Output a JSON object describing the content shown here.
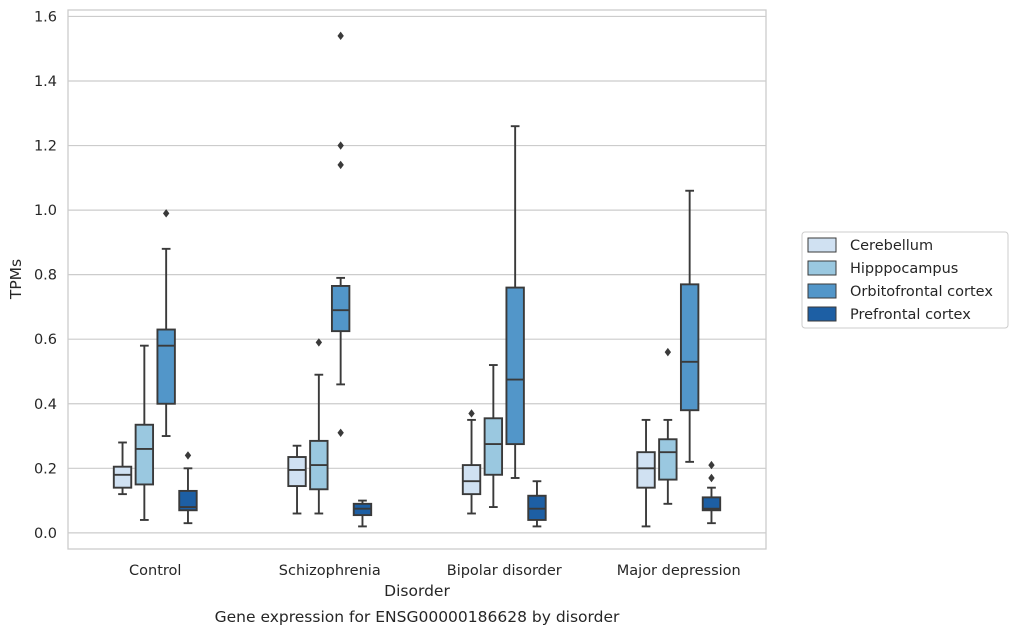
{
  "caption": "Gene expression for ENSG00000186628 by disorder",
  "chart_data": {
    "type": "box",
    "xlabel": "Disorder",
    "ylabel": "TPMs",
    "ylim": [
      -0.05,
      1.62
    ],
    "yticks": [
      "0.0",
      "0.2",
      "0.4",
      "0.6",
      "0.8",
      "1.0",
      "1.2",
      "1.4",
      "1.6"
    ],
    "grid": true,
    "legend_placement": "center-right outside",
    "categories": [
      "Control",
      "Schizophrenia",
      "Bipolar disorder",
      "Major depression"
    ],
    "series": [
      {
        "name": "Cerebellum",
        "color": "#d0e1f2",
        "boxes": [
          {
            "whislo": 0.12,
            "q1": 0.14,
            "med": 0.18,
            "q3": 0.205,
            "whishi": 0.28,
            "fliers": []
          },
          {
            "whislo": 0.06,
            "q1": 0.145,
            "med": 0.195,
            "q3": 0.235,
            "whishi": 0.27,
            "fliers": []
          },
          {
            "whislo": 0.06,
            "q1": 0.12,
            "med": 0.16,
            "q3": 0.21,
            "whishi": 0.35,
            "fliers": [
              0.37
            ]
          },
          {
            "whislo": 0.02,
            "q1": 0.14,
            "med": 0.2,
            "q3": 0.25,
            "whishi": 0.35,
            "fliers": []
          }
        ]
      },
      {
        "name": "Hipppocampus",
        "color": "#9ac8e0",
        "boxes": [
          {
            "whislo": 0.04,
            "q1": 0.15,
            "med": 0.26,
            "q3": 0.335,
            "whishi": 0.58,
            "fliers": []
          },
          {
            "whislo": 0.06,
            "q1": 0.135,
            "med": 0.21,
            "q3": 0.285,
            "whishi": 0.49,
            "fliers": [
              0.59
            ]
          },
          {
            "whislo": 0.08,
            "q1": 0.18,
            "med": 0.275,
            "q3": 0.355,
            "whishi": 0.52,
            "fliers": []
          },
          {
            "whislo": 0.09,
            "q1": 0.165,
            "med": 0.25,
            "q3": 0.29,
            "whishi": 0.35,
            "fliers": [
              0.56
            ]
          }
        ]
      },
      {
        "name": "Orbitofrontal cortex",
        "color": "#5296c9",
        "boxes": [
          {
            "whislo": 0.3,
            "q1": 0.4,
            "med": 0.58,
            "q3": 0.63,
            "whishi": 0.88,
            "fliers": [
              0.99
            ]
          },
          {
            "whislo": 0.46,
            "q1": 0.625,
            "med": 0.69,
            "q3": 0.765,
            "whishi": 0.79,
            "fliers": [
              0.31,
              1.14,
              1.2,
              1.54
            ]
          },
          {
            "whislo": 0.17,
            "q1": 0.275,
            "med": 0.475,
            "q3": 0.76,
            "whishi": 1.26,
            "fliers": []
          },
          {
            "whislo": 0.22,
            "q1": 0.38,
            "med": 0.53,
            "q3": 0.77,
            "whishi": 1.06,
            "fliers": []
          }
        ]
      },
      {
        "name": "Prefrontal cortex",
        "color": "#1d5fa4",
        "boxes": [
          {
            "whislo": 0.03,
            "q1": 0.07,
            "med": 0.08,
            "q3": 0.13,
            "whishi": 0.2,
            "fliers": [
              0.24
            ]
          },
          {
            "whislo": 0.02,
            "q1": 0.055,
            "med": 0.075,
            "q3": 0.09,
            "whishi": 0.1,
            "fliers": []
          },
          {
            "whislo": 0.02,
            "q1": 0.04,
            "med": 0.075,
            "q3": 0.115,
            "whishi": 0.16,
            "fliers": []
          },
          {
            "whislo": 0.03,
            "q1": 0.07,
            "med": 0.075,
            "q3": 0.11,
            "whishi": 0.14,
            "fliers": [
              0.17,
              0.21
            ]
          }
        ]
      }
    ]
  }
}
